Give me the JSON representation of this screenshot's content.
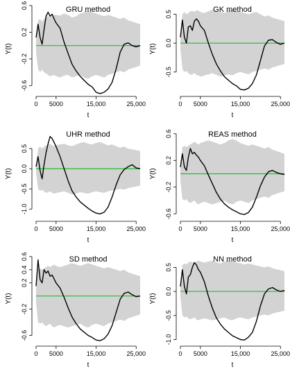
{
  "chart_data": [
    {
      "type": "line",
      "title": "GRU method",
      "xlabel": "t",
      "ylabel": "Y(t)",
      "xlim": [
        0,
        26000
      ],
      "ylim": [
        -0.7,
        0.6
      ],
      "xticks": [
        0,
        5000,
        15000,
        25000
      ],
      "xtick_labels": [
        "0",
        "5000",
        "15,000",
        "25,000"
      ],
      "yticks": [
        0.6,
        0.2,
        -0.2,
        -0.6
      ],
      "ytick_labels": [
        "0.6",
        "0.2",
        "-0.2",
        "-0.6"
      ],
      "reference_line": 0,
      "colors": {
        "band": "#d3d3d3",
        "line": "#000000",
        "reference": "#22bb33"
      },
      "series": [
        {
          "x": [
            0,
            500,
            1000,
            1500,
            2000,
            2500,
            3000,
            3500,
            4000,
            4500,
            5000,
            6000,
            7000,
            8000,
            9000,
            10000,
            11000,
            12000,
            13000,
            14000,
            15000,
            16000,
            17000,
            18000,
            19000,
            20000,
            21000,
            22000,
            23000,
            24000,
            25000,
            26000
          ],
          "y": [
            0.12,
            0.32,
            0.12,
            0.02,
            0.24,
            0.44,
            0.5,
            0.44,
            0.47,
            0.4,
            0.34,
            0.26,
            0.05,
            -0.12,
            -0.28,
            -0.38,
            -0.46,
            -0.52,
            -0.58,
            -0.62,
            -0.7,
            -0.72,
            -0.7,
            -0.65,
            -0.55,
            -0.35,
            -0.1,
            0.02,
            0.04,
            0.0,
            -0.02,
            0.0
          ]
        }
      ],
      "band": {
        "upper": [
          0.1,
          0.38,
          0.4,
          0.36,
          0.4,
          0.42,
          0.44,
          0.42,
          0.45,
          0.46,
          0.46,
          0.45,
          0.48,
          0.46,
          0.42,
          0.44,
          0.48,
          0.5,
          0.52,
          0.5,
          0.48,
          0.46,
          0.44,
          0.46,
          0.44,
          0.42,
          0.4,
          0.42,
          0.38,
          0.36,
          0.34,
          0.32
        ],
        "lower": [
          -0.1,
          -0.35,
          -0.4,
          -0.36,
          -0.4,
          -0.42,
          -0.44,
          -0.46,
          -0.45,
          -0.44,
          -0.46,
          -0.48,
          -0.45,
          -0.44,
          -0.48,
          -0.46,
          -0.44,
          -0.48,
          -0.5,
          -0.46,
          -0.44,
          -0.46,
          -0.48,
          -0.44,
          -0.42,
          -0.4,
          -0.38,
          -0.4,
          -0.36,
          -0.34,
          -0.32,
          -0.3
        ]
      }
    },
    {
      "type": "line",
      "title": "GK method",
      "xlabel": "t",
      "ylabel": "Y(t)",
      "xlim": [
        0,
        26000
      ],
      "ylim": [
        -0.85,
        0.65
      ],
      "xticks": [
        0,
        5000,
        15000,
        25000
      ],
      "xtick_labels": [
        "0",
        "5000",
        "15,000",
        "25,000"
      ],
      "yticks": [
        0.5,
        0.0,
        -0.5
      ],
      "ytick_labels": [
        "0.5",
        "0.0",
        "-0.5"
      ],
      "reference_line": 0,
      "colors": {
        "band": "#d3d3d3",
        "line": "#000000",
        "reference": "#22bb33"
      },
      "series": [
        {
          "x": [
            0,
            500,
            1000,
            1500,
            2000,
            2500,
            3000,
            3500,
            4000,
            4500,
            5000,
            6000,
            7000,
            8000,
            9000,
            10000,
            11000,
            12000,
            13000,
            14000,
            15000,
            16000,
            17000,
            18000,
            19000,
            20000,
            21000,
            22000,
            23000,
            24000,
            25000,
            26000
          ],
          "y": [
            0.1,
            0.4,
            0.1,
            0.0,
            0.28,
            0.3,
            0.22,
            0.38,
            0.42,
            0.38,
            0.3,
            0.22,
            0.0,
            -0.2,
            -0.36,
            -0.48,
            -0.58,
            -0.64,
            -0.7,
            -0.74,
            -0.8,
            -0.81,
            -0.78,
            -0.7,
            -0.55,
            -0.3,
            -0.05,
            0.05,
            0.06,
            0.01,
            -0.02,
            0.0
          ]
        }
      ],
      "band": {
        "upper": [
          0.1,
          0.5,
          0.54,
          0.5,
          0.52,
          0.55,
          0.56,
          0.54,
          0.57,
          0.56,
          0.54,
          0.52,
          0.55,
          0.58,
          0.56,
          0.54,
          0.52,
          0.56,
          0.58,
          0.56,
          0.54,
          0.52,
          0.5,
          0.52,
          0.54,
          0.5,
          0.46,
          0.48,
          0.44,
          0.42,
          0.4,
          0.38
        ],
        "lower": [
          -0.1,
          -0.45,
          -0.5,
          -0.48,
          -0.52,
          -0.55,
          -0.54,
          -0.52,
          -0.55,
          -0.56,
          -0.58,
          -0.56,
          -0.54,
          -0.52,
          -0.55,
          -0.58,
          -0.56,
          -0.54,
          -0.56,
          -0.52,
          -0.5,
          -0.52,
          -0.54,
          -0.5,
          -0.48,
          -0.46,
          -0.44,
          -0.46,
          -0.42,
          -0.4,
          -0.38,
          -0.36
        ]
      }
    },
    {
      "type": "line",
      "title": "UHR method",
      "xlabel": "t",
      "ylabel": "Y(t)",
      "xlim": [
        0,
        26000
      ],
      "ylim": [
        -1.2,
        0.95
      ],
      "xticks": [
        0,
        5000,
        15000,
        25000
      ],
      "xtick_labels": [
        "0",
        "5000",
        "15,000",
        "25,000"
      ],
      "yticks": [
        0.5,
        0.0,
        -0.5,
        -1.0
      ],
      "ytick_labels": [
        "0.5",
        "0.0",
        "-0.5",
        "-1.0"
      ],
      "reference_line": 0,
      "colors": {
        "band": "#d3d3d3",
        "line": "#000000",
        "reference": "#22bb33"
      },
      "series": [
        {
          "x": [
            0,
            500,
            1000,
            1500,
            2000,
            2500,
            3000,
            3500,
            4000,
            4500,
            5000,
            6000,
            7000,
            8000,
            9000,
            10000,
            11000,
            12000,
            13000,
            14000,
            15000,
            16000,
            17000,
            18000,
            19000,
            20000,
            21000,
            22000,
            23000,
            24000,
            25000,
            26000
          ],
          "y": [
            0.05,
            0.3,
            -0.05,
            -0.25,
            0.1,
            0.4,
            0.62,
            0.8,
            0.75,
            0.65,
            0.55,
            0.3,
            0.0,
            -0.3,
            -0.55,
            -0.7,
            -0.82,
            -0.9,
            -0.98,
            -1.05,
            -1.1,
            -1.12,
            -1.08,
            -0.95,
            -0.7,
            -0.4,
            -0.15,
            -0.02,
            0.05,
            0.1,
            0.02,
            0.0
          ]
        }
      ],
      "band": {
        "upper": [
          0.1,
          0.5,
          0.55,
          0.5,
          0.55,
          0.58,
          0.6,
          0.62,
          0.58,
          0.56,
          0.58,
          0.6,
          0.62,
          0.58,
          0.56,
          0.6,
          0.64,
          0.66,
          0.62,
          0.6,
          0.64,
          0.66,
          0.62,
          0.58,
          0.6,
          0.56,
          0.52,
          0.55,
          0.5,
          0.48,
          0.46,
          0.44
        ],
        "lower": [
          -0.1,
          -0.5,
          -0.55,
          -0.52,
          -0.56,
          -0.6,
          -0.58,
          -0.56,
          -0.6,
          -0.62,
          -0.6,
          -0.58,
          -0.56,
          -0.6,
          -0.64,
          -0.62,
          -0.58,
          -0.6,
          -0.62,
          -0.58,
          -0.56,
          -0.58,
          -0.6,
          -0.56,
          -0.54,
          -0.52,
          -0.5,
          -0.52,
          -0.48,
          -0.46,
          -0.44,
          -0.42
        ]
      }
    },
    {
      "type": "line",
      "title": "REAS method",
      "xlabel": "t",
      "ylabel": "Y(t)",
      "xlim": [
        0,
        26000
      ],
      "ylim": [
        -0.65,
        0.65
      ],
      "xticks": [
        0,
        5000,
        15000,
        25000
      ],
      "xtick_labels": [
        "0",
        "5000",
        "15,000",
        "25,000"
      ],
      "yticks": [
        0.6,
        0.2,
        -0.2,
        -0.6
      ],
      "ytick_labels": [
        "0.6",
        "0.2",
        "-0.2",
        "-0.6"
      ],
      "reference_line": 0,
      "colors": {
        "band": "#d3d3d3",
        "line": "#000000",
        "reference": "#22bb33"
      },
      "series": [
        {
          "x": [
            0,
            500,
            1000,
            1500,
            2000,
            2500,
            3000,
            3500,
            4000,
            4500,
            5000,
            6000,
            7000,
            8000,
            9000,
            10000,
            11000,
            12000,
            13000,
            14000,
            15000,
            16000,
            17000,
            18000,
            19000,
            20000,
            21000,
            22000,
            23000,
            24000,
            25000,
            26000
          ],
          "y": [
            0.1,
            0.3,
            0.1,
            0.05,
            0.25,
            0.38,
            0.3,
            0.32,
            0.28,
            0.25,
            0.2,
            0.12,
            -0.02,
            -0.15,
            -0.28,
            -0.38,
            -0.45,
            -0.5,
            -0.54,
            -0.57,
            -0.6,
            -0.61,
            -0.58,
            -0.5,
            -0.35,
            -0.18,
            -0.05,
            0.03,
            0.05,
            0.02,
            0.0,
            -0.01
          ]
        }
      ],
      "band": {
        "upper": [
          0.1,
          0.4,
          0.42,
          0.4,
          0.42,
          0.44,
          0.46,
          0.48,
          0.46,
          0.44,
          0.46,
          0.48,
          0.5,
          0.48,
          0.46,
          0.44,
          0.46,
          0.5,
          0.52,
          0.5,
          0.46,
          0.44,
          0.42,
          0.44,
          0.42,
          0.4,
          0.38,
          0.4,
          0.36,
          0.34,
          0.32,
          0.3
        ],
        "lower": [
          -0.1,
          -0.38,
          -0.4,
          -0.38,
          -0.42,
          -0.44,
          -0.42,
          -0.4,
          -0.44,
          -0.46,
          -0.44,
          -0.42,
          -0.44,
          -0.46,
          -0.44,
          -0.42,
          -0.4,
          -0.44,
          -0.46,
          -0.42,
          -0.4,
          -0.42,
          -0.44,
          -0.4,
          -0.38,
          -0.36,
          -0.34,
          -0.36,
          -0.32,
          -0.3,
          -0.28,
          -0.26
        ]
      }
    },
    {
      "type": "line",
      "title": "SD method",
      "xlabel": "t",
      "ylabel": "Y(t)",
      "xlim": [
        0,
        26000
      ],
      "ylim": [
        -0.7,
        0.62
      ],
      "xticks": [
        0,
        5000,
        15000,
        25000
      ],
      "xtick_labels": [
        "0",
        "5000",
        "15,000",
        "25,000"
      ],
      "yticks": [
        0.6,
        0.4,
        0.2,
        -0.2,
        -0.6
      ],
      "ytick_labels": [
        "0.6",
        "0.4",
        "0.2",
        "-0.2",
        "-0.6"
      ],
      "reference_line": 0,
      "colors": {
        "band": "#d3d3d3",
        "line": "#000000",
        "reference": "#22bb33"
      },
      "series": [
        {
          "x": [
            0,
            500,
            1000,
            1500,
            2000,
            2500,
            3000,
            3500,
            4000,
            4500,
            5000,
            6000,
            7000,
            8000,
            9000,
            10000,
            11000,
            12000,
            13000,
            14000,
            15000,
            16000,
            17000,
            18000,
            19000,
            20000,
            21000,
            22000,
            23000,
            24000,
            25000,
            26000
          ],
          "y": [
            0.15,
            0.55,
            0.25,
            0.2,
            0.4,
            0.35,
            0.38,
            0.3,
            0.32,
            0.26,
            0.2,
            0.12,
            -0.02,
            -0.18,
            -0.32,
            -0.42,
            -0.5,
            -0.55,
            -0.6,
            -0.63,
            -0.67,
            -0.68,
            -0.65,
            -0.58,
            -0.45,
            -0.25,
            -0.05,
            0.04,
            0.06,
            0.02,
            -0.01,
            0.0
          ]
        }
      ],
      "band": {
        "upper": [
          0.1,
          0.4,
          0.42,
          0.4,
          0.42,
          0.44,
          0.46,
          0.44,
          0.46,
          0.48,
          0.46,
          0.44,
          0.46,
          0.48,
          0.5,
          0.48,
          0.46,
          0.48,
          0.5,
          0.48,
          0.46,
          0.44,
          0.42,
          0.44,
          0.42,
          0.4,
          0.38,
          0.4,
          0.36,
          0.34,
          0.32,
          0.3
        ],
        "lower": [
          -0.1,
          -0.4,
          -0.42,
          -0.4,
          -0.44,
          -0.46,
          -0.44,
          -0.42,
          -0.46,
          -0.48,
          -0.46,
          -0.44,
          -0.46,
          -0.48,
          -0.46,
          -0.44,
          -0.42,
          -0.46,
          -0.48,
          -0.44,
          -0.42,
          -0.44,
          -0.46,
          -0.42,
          -0.4,
          -0.38,
          -0.36,
          -0.38,
          -0.34,
          -0.32,
          -0.3,
          -0.28
        ]
      }
    },
    {
      "type": "line",
      "title": "NN method",
      "xlabel": "t",
      "ylabel": "Y(t)",
      "xlim": [
        0,
        26000
      ],
      "ylim": [
        -1.05,
        0.75
      ],
      "xticks": [
        0,
        5000,
        15000,
        25000
      ],
      "xtick_labels": [
        "0",
        "5000",
        "15,000",
        "25,000"
      ],
      "yticks": [
        0.5,
        0.0,
        -0.5,
        -1.0
      ],
      "ytick_labels": [
        "0.5",
        "0.0",
        "-0.5",
        "-1.0"
      ],
      "reference_line": 0,
      "colors": {
        "band": "#d3d3d3",
        "line": "#000000",
        "reference": "#22bb33"
      },
      "series": [
        {
          "x": [
            0,
            500,
            1000,
            1500,
            2000,
            2500,
            3000,
            3500,
            4000,
            4500,
            5000,
            6000,
            7000,
            8000,
            9000,
            10000,
            11000,
            12000,
            13000,
            14000,
            15000,
            16000,
            17000,
            18000,
            19000,
            20000,
            21000,
            22000,
            23000,
            24000,
            25000,
            26000
          ],
          "y": [
            0.1,
            0.45,
            0.1,
            -0.05,
            0.3,
            0.35,
            0.5,
            0.6,
            0.55,
            0.45,
            0.4,
            0.2,
            -0.1,
            -0.35,
            -0.55,
            -0.68,
            -0.78,
            -0.85,
            -0.92,
            -0.96,
            -1.0,
            -1.01,
            -0.95,
            -0.85,
            -0.62,
            -0.3,
            -0.05,
            0.05,
            0.08,
            0.03,
            0.0,
            0.02
          ]
        }
      ],
      "band": {
        "upper": [
          0.1,
          0.55,
          0.58,
          0.56,
          0.6,
          0.62,
          0.6,
          0.58,
          0.62,
          0.64,
          0.62,
          0.6,
          0.62,
          0.64,
          0.6,
          0.58,
          0.62,
          0.64,
          0.62,
          0.6,
          0.58,
          0.56,
          0.58,
          0.56,
          0.54,
          0.52,
          0.5,
          0.52,
          0.48,
          0.46,
          0.44,
          0.42
        ],
        "lower": [
          -0.1,
          -0.5,
          -0.54,
          -0.52,
          -0.56,
          -0.58,
          -0.56,
          -0.54,
          -0.58,
          -0.6,
          -0.58,
          -0.56,
          -0.58,
          -0.6,
          -0.58,
          -0.56,
          -0.54,
          -0.58,
          -0.6,
          -0.56,
          -0.54,
          -0.56,
          -0.58,
          -0.54,
          -0.52,
          -0.5,
          -0.48,
          -0.5,
          -0.46,
          -0.44,
          -0.42,
          -0.4
        ]
      }
    }
  ]
}
